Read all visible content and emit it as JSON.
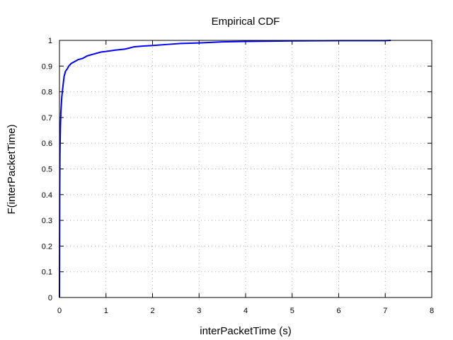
{
  "chart_data": {
    "type": "line",
    "title": "Empirical CDF",
    "xlabel": "interPacketTime (s)",
    "ylabel": "F(interPacketTime)",
    "xlim": [
      0,
      8
    ],
    "ylim": [
      0,
      1
    ],
    "x_ticks": [
      "0",
      "1",
      "2",
      "3",
      "4",
      "5",
      "6",
      "7",
      "8"
    ],
    "y_ticks": [
      "0",
      "0.1",
      "0.2",
      "0.3",
      "0.4",
      "0.5",
      "0.6",
      "0.7",
      "0.8",
      "0.9",
      "1"
    ],
    "grid": true,
    "line_color": "#0000ff",
    "series": [
      {
        "x": [
          0,
          0.003,
          0.006,
          0.01,
          0.02,
          0.03,
          0.05,
          0.08,
          0.1,
          0.13,
          0.17,
          0.2,
          0.25,
          0.3,
          0.4,
          0.5,
          0.6,
          0.7,
          0.8,
          0.9,
          1.0,
          1.2,
          1.4,
          1.5,
          1.6,
          1.8,
          2.0,
          2.3,
          2.6,
          3.0,
          3.5,
          4.0,
          4.5,
          5.0,
          6.0,
          7.0,
          7.12
        ],
        "y": [
          0,
          0.2,
          0.4,
          0.55,
          0.66,
          0.72,
          0.78,
          0.83,
          0.86,
          0.88,
          0.89,
          0.9,
          0.91,
          0.915,
          0.925,
          0.93,
          0.94,
          0.945,
          0.95,
          0.955,
          0.957,
          0.962,
          0.966,
          0.97,
          0.975,
          0.978,
          0.98,
          0.984,
          0.988,
          0.99,
          0.994,
          0.996,
          0.997,
          0.998,
          0.999,
          0.999,
          1.0
        ]
      }
    ]
  }
}
